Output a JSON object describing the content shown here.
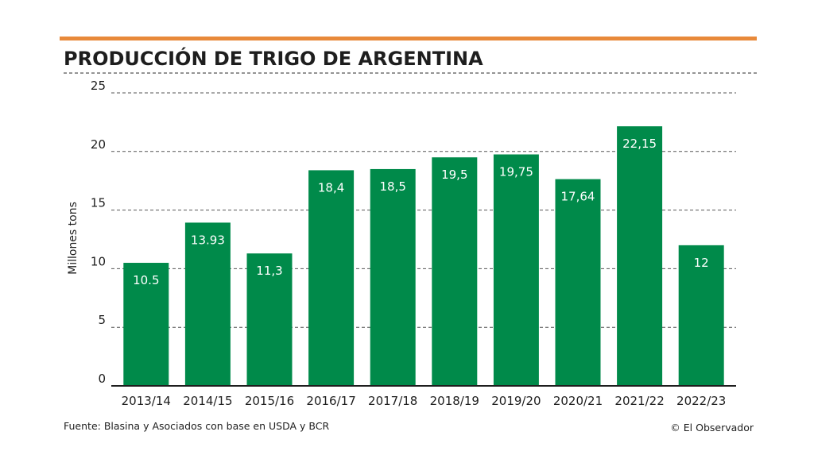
{
  "colors": {
    "accent": "#e8893a",
    "bar": "#008a4a",
    "grid": "#555555",
    "text": "#1e1e1e",
    "label": "#ffffff"
  },
  "chart_data": {
    "type": "bar",
    "title": "PRODUCCIÓN DE TRIGO DE ARGENTINA",
    "ylabel": "Millones tons",
    "xlabel": "",
    "ylim": [
      0,
      25
    ],
    "yticks": [
      0,
      5,
      10,
      15,
      20,
      25
    ],
    "categories": [
      "2013/14",
      "2014/15",
      "2015/16",
      "2016/17",
      "2017/18",
      "2018/19",
      "2019/20",
      "2020/21",
      "2021/22",
      "2022/23"
    ],
    "values": [
      10.5,
      13.93,
      11.3,
      18.4,
      18.5,
      19.5,
      19.75,
      17.64,
      22.15,
      12
    ],
    "data_labels": [
      "10.5",
      "13.93",
      "11,3",
      "18,4",
      "18,5",
      "19,5",
      "19,75",
      "17,64",
      "22,15",
      "12"
    ],
    "grid": true
  },
  "footer": {
    "source": "Fuente: Blasina y Asociados con base en USDA y BCR",
    "credit": "© El Observador"
  }
}
